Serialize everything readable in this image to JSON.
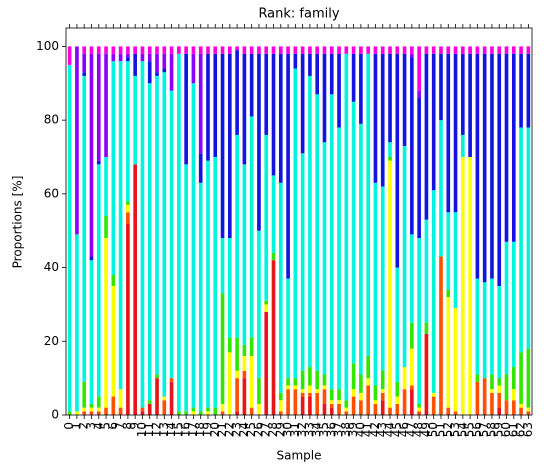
{
  "chart_data": {
    "type": "stacked_bar",
    "title": "Rank: family",
    "x_label": "Sample",
    "y_label": "Proportions [%]",
    "categories": [
      "0",
      "1",
      "2",
      "3",
      "4",
      "5",
      "6",
      "7",
      "8",
      "9",
      "10",
      "11",
      "12",
      "13",
      "14",
      "15",
      "16",
      "17",
      "18",
      "19",
      "20",
      "21",
      "22",
      "23",
      "24",
      "25",
      "26",
      "27",
      "28",
      "29",
      "30",
      "31",
      "32",
      "33",
      "34",
      "35",
      "36",
      "37",
      "38",
      "39",
      "40",
      "41",
      "42",
      "43",
      "44",
      "45",
      "46",
      "47",
      "48",
      "49",
      "50",
      "51",
      "52",
      "53",
      "54",
      "55",
      "56",
      "57",
      "58",
      "59",
      "60",
      "61",
      "62",
      "63"
    ],
    "series": [
      {
        "color": "#e8141c",
        "values": [
          0,
          0,
          0,
          0,
          0,
          0,
          0,
          0,
          52,
          68,
          1,
          3,
          10,
          0,
          9,
          0,
          0,
          0,
          0,
          0,
          0,
          0,
          0,
          1,
          10,
          0,
          0,
          28,
          42,
          0,
          0,
          0,
          5,
          5,
          0,
          3,
          2,
          0,
          0,
          0,
          0,
          0,
          0,
          4,
          0,
          0,
          0,
          7,
          0,
          22,
          0,
          0,
          0,
          0,
          0,
          0,
          0,
          0,
          0,
          2,
          0,
          0,
          0,
          0
        ]
      },
      {
        "color": "#ff5000",
        "values": [
          0,
          0,
          1,
          1,
          1,
          2,
          5,
          2,
          3,
          0,
          1,
          0,
          0,
          4,
          1,
          0,
          0,
          0,
          0,
          0,
          0,
          1,
          0,
          9,
          2,
          2,
          0,
          0,
          0,
          1,
          7,
          7,
          1,
          1,
          6,
          4,
          1,
          3,
          1,
          5,
          4,
          8,
          3,
          2,
          2,
          3,
          7,
          1,
          1,
          0,
          5,
          43,
          2,
          1,
          0,
          0,
          9,
          10,
          6,
          4,
          4,
          4,
          2,
          1
        ]
      },
      {
        "color": "#ffff00",
        "values": [
          0,
          1,
          1,
          1,
          1,
          46,
          30,
          5,
          2,
          0,
          0,
          0,
          0,
          1,
          0,
          0,
          0,
          1,
          0,
          1,
          0,
          2,
          17,
          2,
          4,
          14,
          3,
          2,
          0,
          3,
          1,
          1,
          1,
          2,
          1,
          1,
          1,
          1,
          1,
          2,
          2,
          2,
          1,
          1,
          67,
          2,
          6,
          10,
          1,
          0,
          1,
          0,
          30,
          28,
          70,
          70,
          0,
          0,
          1,
          2,
          0,
          3,
          1,
          1
        ]
      },
      {
        "color": "#33e600",
        "values": [
          1,
          0,
          7,
          1,
          3,
          6,
          3,
          0,
          1,
          0,
          0,
          1,
          1,
          0,
          0,
          1,
          1,
          1,
          1,
          1,
          2,
          30,
          4,
          9,
          3,
          5,
          7,
          1,
          2,
          2,
          2,
          2,
          5,
          5,
          5,
          3,
          3,
          3,
          2,
          7,
          5,
          6,
          4,
          5,
          1,
          4,
          0,
          7,
          1,
          3,
          0,
          0,
          2,
          0,
          0,
          0,
          2,
          0,
          4,
          2,
          7,
          6,
          14,
          16
        ]
      },
      {
        "color": "#00f5dc",
        "values": [
          94,
          48,
          83,
          39,
          63,
          16,
          58,
          89,
          38,
          24,
          94,
          86,
          81,
          88,
          78,
          97,
          67,
          88,
          62,
          67,
          68,
          15,
          27,
          55,
          49,
          60,
          40,
          45,
          21,
          57,
          27,
          84,
          59,
          79,
          75,
          63,
          80,
          71,
          94,
          71,
          68,
          82,
          55,
          50,
          4,
          31,
          60,
          24,
          45,
          28,
          55,
          37,
          21,
          26,
          6,
          0,
          26,
          26,
          26,
          25,
          36,
          34,
          61,
          60
        ]
      },
      {
        "color": "#1414e0",
        "values": [
          0,
          0,
          1,
          1,
          1,
          0,
          0,
          0,
          1,
          6,
          0,
          6,
          1,
          1,
          0,
          0,
          30,
          0,
          8,
          29,
          28,
          50,
          50,
          23,
          30,
          17,
          48,
          22,
          33,
          35,
          61,
          4,
          27,
          6,
          11,
          24,
          11,
          20,
          0,
          13,
          19,
          0,
          35,
          36,
          24,
          58,
          25,
          48,
          38,
          45,
          37,
          18,
          43,
          43,
          22,
          28,
          61,
          62,
          61,
          63,
          51,
          51,
          20,
          20
        ]
      },
      {
        "color": "#8c00ff",
        "values": [
          0,
          51,
          5,
          55,
          29,
          28,
          2,
          2,
          1,
          0,
          2,
          2,
          5,
          4,
          10,
          0,
          0,
          8,
          27,
          0,
          0,
          0,
          0,
          0,
          0,
          0,
          0,
          0,
          0,
          0,
          0,
          0,
          0,
          0,
          0,
          0,
          0,
          0,
          0,
          0,
          0,
          0,
          0,
          0,
          0,
          0,
          0,
          1,
          2,
          0,
          0,
          0,
          0,
          0,
          0,
          0,
          0,
          0,
          0,
          0,
          0,
          0,
          0,
          0
        ]
      },
      {
        "color": "#ff00dc",
        "values": [
          5,
          0,
          2,
          2,
          2,
          2,
          2,
          2,
          2,
          2,
          2,
          2,
          2,
          2,
          2,
          2,
          2,
          2,
          2,
          2,
          2,
          2,
          2,
          1,
          2,
          2,
          2,
          2,
          2,
          2,
          2,
          2,
          2,
          2,
          2,
          2,
          2,
          2,
          2,
          2,
          2,
          2,
          2,
          2,
          2,
          2,
          2,
          2,
          12,
          2,
          2,
          2,
          2,
          2,
          2,
          2,
          2,
          2,
          2,
          2,
          2,
          2,
          2,
          2
        ]
      }
    ],
    "ylim": [
      0,
      105
    ],
    "yticks": [
      0,
      20,
      40,
      60,
      80,
      100
    ]
  }
}
